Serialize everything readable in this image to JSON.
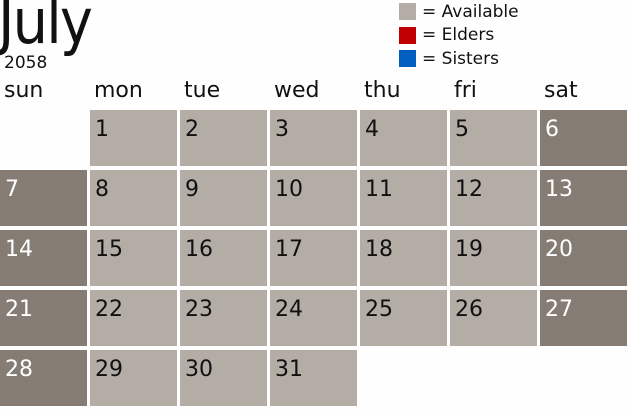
{
  "calendar": {
    "month": "July",
    "year": "2058",
    "weekdays": [
      "sun",
      "mon",
      "tue",
      "wed",
      "thu",
      "fri",
      "sat"
    ],
    "first_weekday": 1,
    "days_in_month": 31
  },
  "legend": [
    {
      "label": "= Available",
      "color": "#b3ada5"
    },
    {
      "label": "= Elders",
      "color": "#c00000"
    },
    {
      "label": "= Sisters",
      "color": "#005fbf"
    }
  ],
  "colors": {
    "available": "#b3ada5",
    "weekend": "#857d73"
  }
}
